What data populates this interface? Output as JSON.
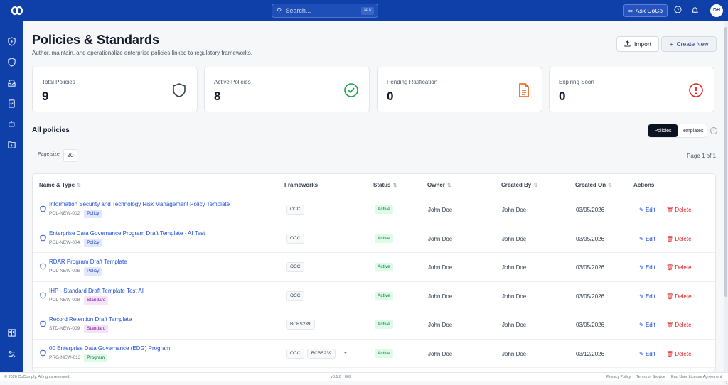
{
  "topbar": {
    "search_placeholder": "Search...",
    "search_shortcut": "⌘ K",
    "ask_label": "Ask CoCo",
    "avatar_initials": "DH"
  },
  "header": {
    "title": "Policies & Standards",
    "subtitle": "Author, maintain, and operationalize enterprise policies linked to regulatory frameworks.",
    "import_label": "Import",
    "create_label": "Create New"
  },
  "stats": [
    {
      "label": "Total Policies",
      "value": "9",
      "icon": "shield-icon",
      "color": "#374151"
    },
    {
      "label": "Active Policies",
      "value": "8",
      "icon": "check-circle-icon",
      "color": "#16a34a"
    },
    {
      "label": "Pending Ratification",
      "value": "0",
      "icon": "document-icon",
      "color": "#ea580c"
    },
    {
      "label": "Expiring Soon",
      "value": "0",
      "icon": "alert-circle-icon",
      "color": "#dc2626"
    }
  ],
  "list": {
    "title": "All policies",
    "tabs": [
      "Policies",
      "Templates"
    ],
    "active_tab": "Policies",
    "page_size_label": "Page size",
    "page_size": "20",
    "page_info": "Page 1 of 1"
  },
  "table": {
    "columns": [
      "Name & Type",
      "Frameworks",
      "Status",
      "Owner",
      "Created By",
      "Created On",
      "Actions"
    ],
    "edit_label": "Edit",
    "delete_label": "Delete",
    "rows": [
      {
        "name": "Information Security and Technology Risk Management Policy Template",
        "code": "POL-NEW-002",
        "type": "Policy",
        "frameworks": [
          "OCC"
        ],
        "more": "",
        "status": "Active",
        "owner": "John Doe",
        "created_by": "John Doe",
        "created_on": "03/05/2026"
      },
      {
        "name": "Enterprise Data Governance Program Draft Template - AI Test",
        "code": "POL-NEW-004",
        "type": "Policy",
        "frameworks": [
          "OCC"
        ],
        "more": "",
        "status": "Active",
        "owner": "John Doe",
        "created_by": "John Doe",
        "created_on": "03/05/2026"
      },
      {
        "name": "RDAR Program Draft Template",
        "code": "POL-NEW-006",
        "type": "Policy",
        "frameworks": [
          "OCC"
        ],
        "more": "",
        "status": "Active",
        "owner": "John Doe",
        "created_by": "John Doe",
        "created_on": "03/05/2026"
      },
      {
        "name": "IHP - Standard Draft Template Test AI",
        "code": "POL-NEW-008",
        "type": "Standard",
        "frameworks": [
          "OCC"
        ],
        "more": "",
        "status": "Active",
        "owner": "John Doe",
        "created_by": "John Doe",
        "created_on": "03/05/2026"
      },
      {
        "name": "Record Retention Draft Template",
        "code": "STD-NEW-009",
        "type": "Standard",
        "frameworks": [
          "BCBS239"
        ],
        "more": "",
        "status": "Active",
        "owner": "John Doe",
        "created_by": "John Doe",
        "created_on": "03/05/2026"
      },
      {
        "name": "00 Enterprise Data Governance (EDG) Program",
        "code": "PRG-NEW-013",
        "type": "Program",
        "frameworks": [
          "OCC",
          "BCBS239"
        ],
        "more": "+1",
        "status": "Active",
        "owner": "John Doe",
        "created_by": "John Doe",
        "created_on": "03/12/2026"
      }
    ]
  },
  "footer": {
    "copyright": "© 2026 CoComply. All rights reserved.",
    "version": "v0.1.0 - 003",
    "privacy": "Privacy Policy",
    "terms": "Terms of Service",
    "eula": "End User License Agreement"
  }
}
